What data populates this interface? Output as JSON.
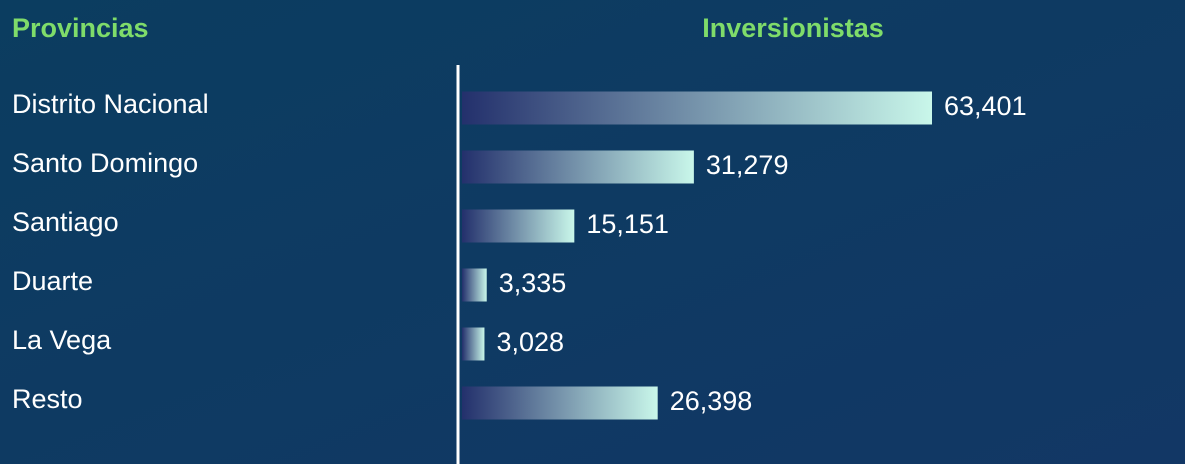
{
  "chart_data": {
    "type": "bar",
    "orientation": "horizontal",
    "category_header": "Provincias",
    "value_header": "Inversionistas",
    "categories": [
      "Distrito Nacional",
      "Santo Domingo",
      "Santiago",
      "Duarte",
      "La Vega",
      "Resto"
    ],
    "values": [
      63401,
      31279,
      15151,
      3335,
      3028,
      26398
    ],
    "value_labels": [
      "63,401",
      "31,279",
      "15,151",
      "3,335",
      "3,028",
      "26,398"
    ],
    "colors": [
      "#23306c",
      "#c9f7ea"
    ]
  }
}
